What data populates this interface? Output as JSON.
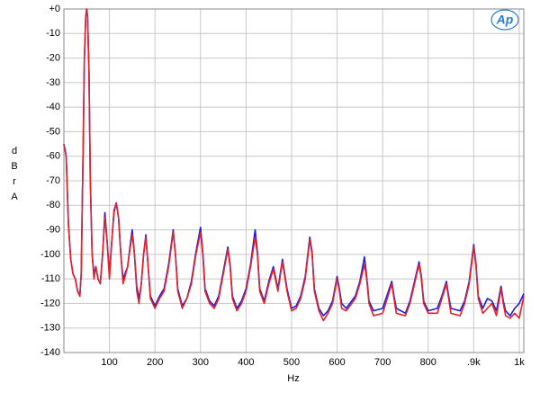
{
  "chart_data": {
    "type": "line",
    "logo": "Ap",
    "xlabel": "Hz",
    "ylabel": "dBr  A",
    "xlim": [
      0,
      1010
    ],
    "ylim": [
      -140,
      0
    ],
    "xticks": [
      100,
      200,
      300,
      400,
      500,
      600,
      700,
      800,
      {
        "value": 900,
        "label": ".9k"
      },
      {
        "value": 1000,
        "label": "1k"
      }
    ],
    "yticks": [
      {
        "value": 0,
        "label": "+0"
      },
      -10,
      -20,
      -30,
      -40,
      -50,
      -60,
      -70,
      -80,
      -90,
      -100,
      -110,
      -120,
      -130,
      -140
    ],
    "grid": true,
    "x": [
      0,
      5,
      10,
      15,
      20,
      25,
      30,
      35,
      38,
      42,
      45,
      48,
      50,
      52,
      55,
      58,
      62,
      66,
      70,
      75,
      80,
      85,
      90,
      95,
      100,
      105,
      110,
      115,
      120,
      125,
      130,
      140,
      145,
      150,
      155,
      160,
      165,
      170,
      175,
      180,
      185,
      190,
      200,
      210,
      220,
      230,
      240,
      245,
      250,
      260,
      270,
      280,
      290,
      300,
      305,
      310,
      320,
      330,
      340,
      350,
      360,
      365,
      370,
      380,
      390,
      400,
      410,
      420,
      425,
      430,
      440,
      450,
      460,
      470,
      480,
      490,
      500,
      510,
      520,
      530,
      540,
      545,
      550,
      560,
      570,
      580,
      590,
      600,
      605,
      610,
      620,
      640,
      650,
      660,
      665,
      670,
      680,
      700,
      720,
      725,
      730,
      750,
      760,
      770,
      780,
      785,
      790,
      800,
      820,
      830,
      840,
      845,
      850,
      870,
      880,
      890,
      900,
      905,
      910,
      920,
      930,
      940,
      950,
      960,
      965,
      970,
      980,
      990,
      1000,
      1010
    ],
    "series": [
      {
        "color": "#1c1ce0",
        "values": [
          -55,
          -60,
          -88,
          -102,
          -108,
          -110,
          -115,
          -117,
          -108,
          -60,
          -20,
          -3,
          0,
          -3,
          -25,
          -70,
          -100,
          -108,
          -105,
          -110,
          -112,
          -100,
          -83,
          -95,
          -108,
          -95,
          -83,
          -79,
          -85,
          -100,
          -110,
          -105,
          -97,
          -90,
          -100,
          -113,
          -118,
          -112,
          -100,
          -92,
          -105,
          -117,
          -121,
          -117,
          -114,
          -104,
          -90,
          -100,
          -114,
          -121,
          -118,
          -111,
          -99,
          -89,
          -99,
          -114,
          -119,
          -121,
          -117,
          -107,
          -97,
          -104,
          -117,
          -122,
          -119,
          -114,
          -104,
          -90,
          -99,
          -114,
          -119,
          -111,
          -105,
          -114,
          -102,
          -114,
          -122,
          -121,
          -117,
          -109,
          -93,
          -99,
          -114,
          -122,
          -125,
          -123,
          -119,
          -109,
          -114,
          -120,
          -122,
          -117,
          -111,
          -101,
          -109,
          -119,
          -123,
          -122,
          -111,
          -117,
          -122,
          -124,
          -119,
          -111,
          -103,
          -109,
          -119,
          -123,
          -122,
          -117,
          -111,
          -117,
          -122,
          -123,
          -119,
          -111,
          -96,
          -104,
          -117,
          -122,
          -118,
          -119,
          -123,
          -113,
          -119,
          -123,
          -125,
          -122,
          -120,
          -116
        ]
      },
      {
        "color": "#e8202a",
        "values": [
          -55,
          -60,
          -88,
          -102,
          -108,
          -110,
          -115,
          -117,
          -108,
          -60,
          -20,
          -3,
          0,
          -3,
          -25,
          -70,
          -100,
          -110,
          -105,
          -110,
          -112,
          -100,
          -85,
          -95,
          -110,
          -95,
          -82,
          -79,
          -85,
          -100,
          -112,
          -105,
          -98,
          -92,
          -100,
          -115,
          -120,
          -112,
          -100,
          -93,
          -105,
          -118,
          -122,
          -118,
          -115,
          -105,
          -91,
          -100,
          -115,
          -122,
          -118,
          -112,
          -100,
          -91,
          -100,
          -115,
          -120,
          -122,
          -118,
          -108,
          -98,
          -105,
          -118,
          -123,
          -120,
          -115,
          -105,
          -93,
          -100,
          -115,
          -120,
          -112,
          -106,
          -115,
          -103,
          -115,
          -123,
          -122,
          -118,
          -110,
          -94,
          -100,
          -115,
          -123,
          -127,
          -124,
          -120,
          -110,
          -115,
          -122,
          -123,
          -118,
          -112,
          -104,
          -110,
          -120,
          -125,
          -124,
          -112,
          -118,
          -124,
          -125,
          -120,
          -112,
          -104,
          -110,
          -120,
          -124,
          -124,
          -118,
          -112,
          -118,
          -124,
          -125,
          -120,
          -112,
          -97,
          -105,
          -118,
          -124,
          -122,
          -120,
          -125,
          -114,
          -120,
          -125,
          -126,
          -124,
          -126,
          -117
        ]
      }
    ]
  }
}
